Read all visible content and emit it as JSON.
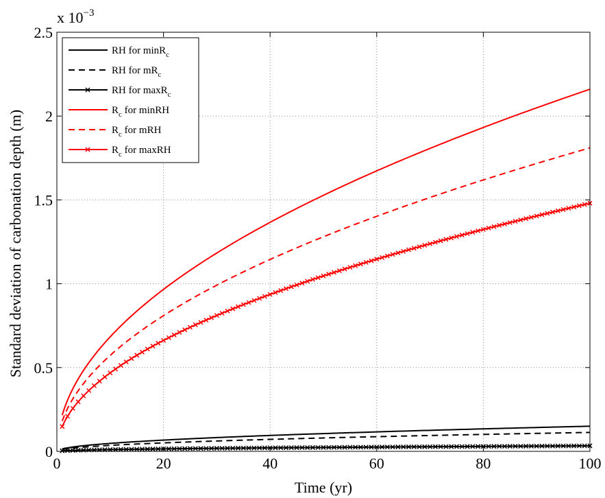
{
  "chart_data": {
    "type": "line",
    "title": "",
    "xlabel": "Time (yr)",
    "ylabel": "Standard deviation of carbonation depth (m)",
    "xlim": [
      0,
      100
    ],
    "ylim": [
      0,
      0.0025
    ],
    "y_exponent_label": {
      "base": "x 10",
      "exp": "−3"
    },
    "xticks": [
      0,
      20,
      40,
      60,
      80,
      100
    ],
    "xtick_labels": [
      "0",
      "20",
      "40",
      "60",
      "80",
      "100"
    ],
    "yticks": [
      0,
      0.0005,
      0.001,
      0.0015,
      0.002,
      0.0025
    ],
    "ytick_labels": [
      "0",
      "0.5",
      "1",
      "1.5",
      "2",
      "2.5"
    ],
    "grid": true,
    "legend_position": "top-left",
    "model": "y = a * sqrt(t), t from 1 to 100 yr",
    "series": [
      {
        "name": "RH for minR",
        "name_sub": "c",
        "color": "#000000",
        "dash": "solid",
        "marker": "none",
        "y_at_100": 0.00015
      },
      {
        "name": "RH for mR",
        "name_sub": "c",
        "color": "#000000",
        "dash": "dashed",
        "marker": "none",
        "y_at_100": 0.000113
      },
      {
        "name": "RH for maxR",
        "name_sub": "c",
        "color": "#000000",
        "dash": "solid",
        "marker": "x",
        "y_at_100": 3.3e-05
      },
      {
        "name": "R",
        "name_sub": "c",
        "name_suffix": " for minRH",
        "color": "#ff0000",
        "dash": "solid",
        "marker": "none",
        "y_at_100": 0.00216
      },
      {
        "name": "R",
        "name_sub": "c",
        "name_suffix": " for mRH",
        "color": "#ff0000",
        "dash": "dashed",
        "marker": "none",
        "y_at_100": 0.00181
      },
      {
        "name": "R",
        "name_sub": "c",
        "name_suffix": " for maxRH",
        "color": "#ff0000",
        "dash": "solid",
        "marker": "x",
        "y_at_100": 0.00148
      }
    ]
  }
}
